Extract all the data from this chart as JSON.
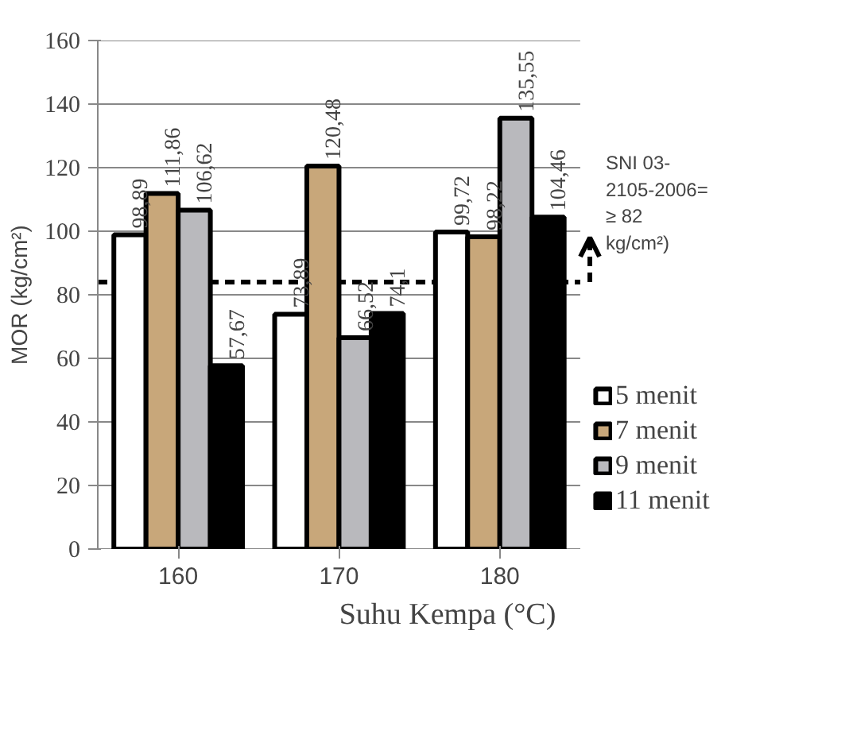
{
  "chart_data": {
    "type": "bar",
    "xlabel": "Suhu Kempa (°C)",
    "ylabel": "MOR (kg/cm²)",
    "categories": [
      "160",
      "170",
      "180"
    ],
    "series": [
      {
        "name": "5 menit",
        "color": "#ffffff",
        "values": [
          98.89,
          73.89,
          99.72
        ],
        "value_labels": [
          "98,89",
          "73,89",
          "99,72"
        ]
      },
      {
        "name": "7 menit",
        "color": "#c8a77a",
        "values": [
          111.86,
          120.48,
          98.22
        ],
        "value_labels": [
          "111,86",
          "120,48",
          "98,22"
        ]
      },
      {
        "name": "9 menit",
        "color": "#b9b9bd",
        "values": [
          106.62,
          66.52,
          135.55
        ],
        "value_labels": [
          "106,62",
          "66,52",
          "135,55"
        ]
      },
      {
        "name": "11 menit",
        "color": "#000000",
        "values": [
          57.67,
          74.1,
          104.46
        ],
        "value_labels": [
          "57,67",
          "74,1",
          "104,46"
        ]
      }
    ],
    "ylim": [
      0,
      160
    ],
    "yticks": [
      0,
      20,
      40,
      60,
      80,
      100,
      120,
      140,
      160
    ],
    "grid": "y",
    "legend": "right",
    "ref_lines": [
      {
        "axis": "y",
        "value": 84,
        "label": "SNI 03-2105-2006= ≥ 82 kg/cm²)",
        "line_style": "dashed",
        "color": "#000000"
      }
    ]
  }
}
